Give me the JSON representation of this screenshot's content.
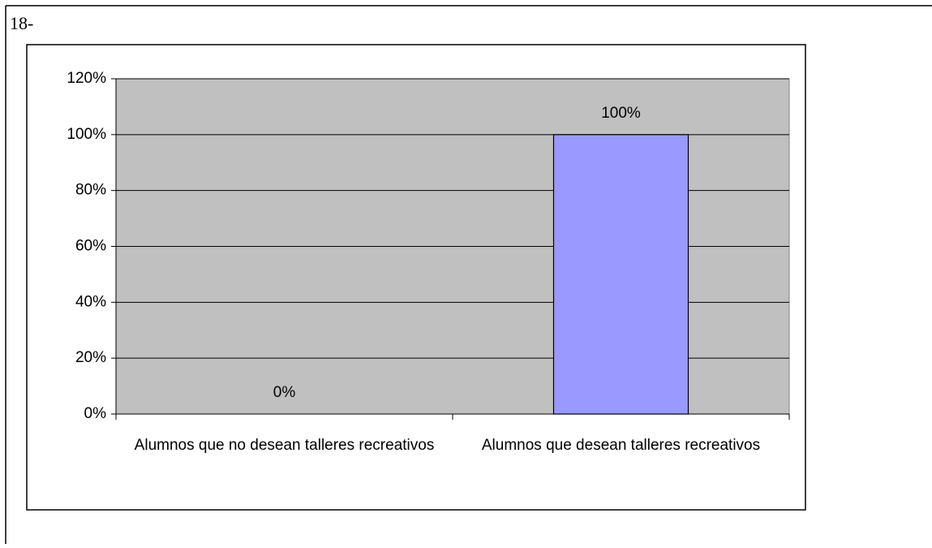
{
  "figure_label": "18-",
  "chart_data": {
    "type": "bar",
    "categories": [
      "Alumnos que no desean talleres recreativos",
      "Alumnos que desean talleres recreativos"
    ],
    "values": [
      0,
      100
    ],
    "value_labels": [
      "0%",
      "100%"
    ],
    "color": "#9999ff",
    "ylim": [
      0,
      120
    ],
    "yticks": [
      {
        "value": 0,
        "label": "0%"
      },
      {
        "value": 20,
        "label": "20%"
      },
      {
        "value": 40,
        "label": "40%"
      },
      {
        "value": 60,
        "label": "60%"
      },
      {
        "value": 80,
        "label": "80%"
      },
      {
        "value": 100,
        "label": "100%"
      },
      {
        "value": 120,
        "label": "120%"
      }
    ],
    "grid": true
  }
}
